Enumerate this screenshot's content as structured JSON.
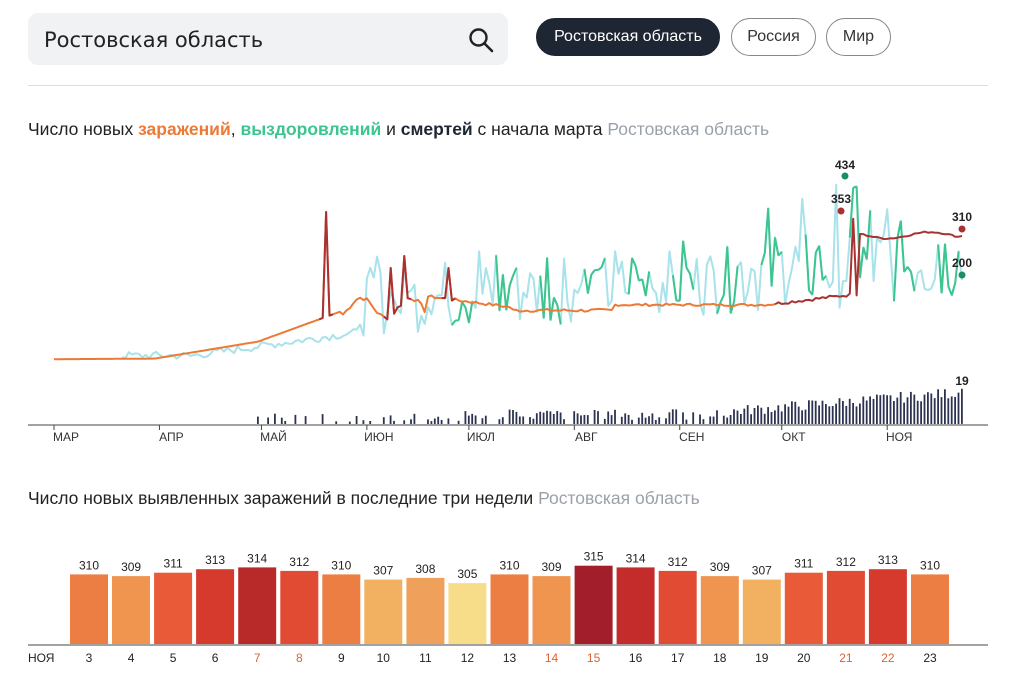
{
  "search": {
    "value": "Ростовская область"
  },
  "region_tabs": [
    {
      "label": "Ростовская область",
      "active": true
    },
    {
      "label": "Россия",
      "active": false
    },
    {
      "label": "Мир",
      "active": false
    }
  ],
  "chart1": {
    "title_prefix": "Число новых ",
    "title_infections": "заражений",
    "title_sep1": ", ",
    "title_recoveries": "выздоровлений",
    "title_sep2": " и ",
    "title_deaths": "смертей",
    "title_suffix": " с начала марта",
    "region": "Ростовская область"
  },
  "chart2": {
    "title": "Число новых выявленных заражений в последние три недели",
    "region": "Ростовская область",
    "month_label": "НОЯ"
  },
  "colors": {
    "infections": "#ec7a36",
    "infections_dark": "#a83232",
    "recoveries": "#3cc58f",
    "recoveries_light": "#a8e2ea",
    "deaths": "#2b3350",
    "weekend_label": "#e0622d"
  },
  "chart_data": [
    {
      "type": "line",
      "x_range": [
        "2020-03-01",
        "2020-11-23"
      ],
      "x_ticks": [
        "МАР",
        "АПР",
        "МАЙ",
        "ИЮН",
        "ИЮЛ",
        "АВГ",
        "СЕН",
        "ОКТ",
        "НОЯ"
      ],
      "series": [
        {
          "name": "заражений",
          "color": "#ec7a36",
          "last_value": 310,
          "peak_annotation": {
            "date": "2020-10-21",
            "value": 353
          }
        },
        {
          "name": "выздоровлений",
          "color": "#3cc58f",
          "last_value": 200,
          "peak_annotation": {
            "date": "2020-10-22",
            "value": 434
          }
        },
        {
          "name": "смертей",
          "color": "#2b3350",
          "last_value": 19
        }
      ],
      "annotations": [
        "434",
        "353",
        "310",
        "200",
        "19"
      ]
    },
    {
      "type": "bar",
      "categories": [
        "3",
        "4",
        "5",
        "6",
        "7",
        "8",
        "9",
        "10",
        "11",
        "12",
        "13",
        "14",
        "15",
        "16",
        "17",
        "18",
        "19",
        "20",
        "21",
        "22",
        "23"
      ],
      "values": [
        310,
        309,
        311,
        313,
        314,
        312,
        310,
        307,
        308,
        305,
        310,
        309,
        315,
        314,
        312,
        309,
        307,
        311,
        312,
        313,
        310
      ],
      "weekend": [
        false,
        false,
        false,
        false,
        true,
        true,
        false,
        false,
        false,
        false,
        false,
        true,
        true,
        false,
        false,
        false,
        false,
        false,
        true,
        true,
        false
      ],
      "colors": [
        "#ec7e44",
        "#ef9550",
        "#e85a38",
        "#d63a2c",
        "#b82a29",
        "#e14a33",
        "#ec7e44",
        "#f1b160",
        "#efa05a",
        "#f7dc8a",
        "#ec7e44",
        "#ef9550",
        "#a11e2a",
        "#c42c2c",
        "#e14a33",
        "#ef9550",
        "#f1b160",
        "#e85a38",
        "#e14a33",
        "#d63a2c",
        "#ec7e44"
      ]
    }
  ]
}
